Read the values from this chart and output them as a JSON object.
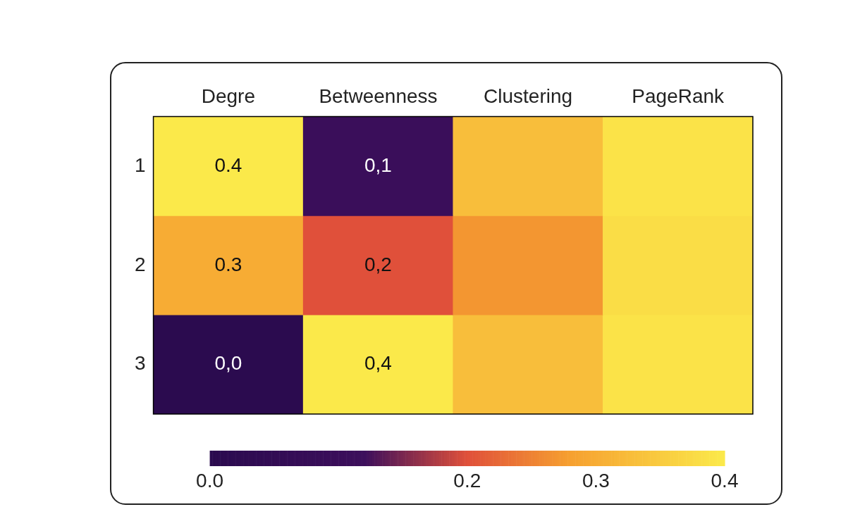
{
  "chart_data": {
    "type": "heatmap",
    "categories": [
      "Degre",
      "Betweenness",
      "Clustering",
      "PageRank"
    ],
    "y_categories": [
      "1",
      "2",
      "3"
    ],
    "cells": [
      [
        0.4,
        0.1,
        0.33,
        0.39
      ],
      [
        0.3,
        0.2,
        0.27,
        0.38
      ],
      [
        0.0,
        0.4,
        0.33,
        0.39
      ]
    ],
    "cell_labels": [
      [
        "0.4",
        "0,1",
        null,
        null
      ],
      [
        "0.3",
        "0,2",
        null,
        null
      ],
      [
        "0,0",
        "0,4",
        null,
        null
      ]
    ],
    "clim": [
      0,
      0.4
    ],
    "cticks": [
      {
        "value": 0,
        "label": "0.0"
      },
      0.2,
      0.3,
      0.4
    ]
  }
}
